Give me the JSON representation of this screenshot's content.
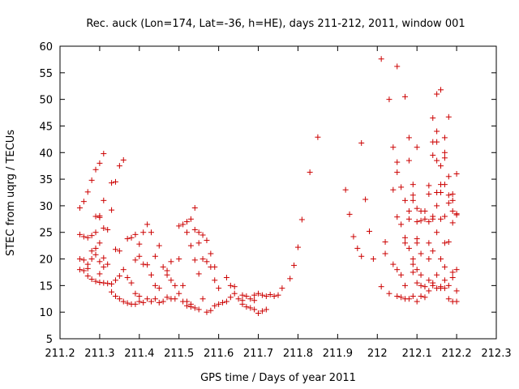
{
  "chart_data": {
    "type": "scatter",
    "title": "Rec. auck (Lon=174, Lat=-36, h=HE), days 211-212, 2011, window 001",
    "xlabel": "GPS time / Days of year 2011",
    "ylabel": "STEC from uqrg / TECUs",
    "xlim": [
      211.2,
      212.3
    ],
    "ylim": [
      5,
      60
    ],
    "x_ticks": [
      "211.2",
      "211.3",
      "211.4",
      "211.5",
      "211.6",
      "211.7",
      "211.8",
      "211.9",
      "212",
      "212.1",
      "212.2",
      "212.3"
    ],
    "y_ticks": [
      "5",
      "10",
      "15",
      "20",
      "25",
      "30",
      "35",
      "40",
      "45",
      "50",
      "55",
      "60"
    ],
    "grid": false,
    "legend": "none",
    "marker": "plus",
    "color": "#cc0000",
    "series": [
      {
        "points": [
          [
            211.25,
            29.6
          ],
          [
            211.26,
            30.8
          ],
          [
            211.27,
            32.6
          ],
          [
            211.28,
            34.8
          ],
          [
            211.29,
            36.8
          ],
          [
            211.3,
            38.0
          ],
          [
            211.31,
            39.8
          ],
          [
            211.33,
            34.3
          ],
          [
            211.34,
            34.5
          ],
          [
            211.35,
            37.5
          ],
          [
            211.36,
            38.6
          ],
          [
            211.25,
            24.6
          ],
          [
            211.26,
            24.2
          ],
          [
            211.27,
            24.0
          ],
          [
            211.28,
            24.4
          ],
          [
            211.29,
            25.0
          ],
          [
            211.3,
            27.8
          ],
          [
            211.31,
            25.8
          ],
          [
            211.32,
            25.5
          ],
          [
            211.33,
            29.2
          ],
          [
            211.29,
            28.0
          ],
          [
            211.3,
            28.1
          ],
          [
            211.31,
            31.0
          ],
          [
            211.25,
            20.0
          ],
          [
            211.26,
            19.8
          ],
          [
            211.27,
            19.0
          ],
          [
            211.28,
            20.0
          ],
          [
            211.29,
            20.8
          ],
          [
            211.3,
            23.0
          ],
          [
            211.31,
            20.2
          ],
          [
            211.25,
            18.0
          ],
          [
            211.26,
            17.8
          ],
          [
            211.27,
            18.2
          ],
          [
            211.28,
            21.5
          ],
          [
            211.29,
            22.0
          ],
          [
            211.3,
            19.5
          ],
          [
            211.27,
            16.8
          ],
          [
            211.28,
            16.2
          ],
          [
            211.29,
            15.8
          ],
          [
            211.3,
            15.6
          ],
          [
            211.31,
            15.5
          ],
          [
            211.32,
            15.4
          ],
          [
            211.33,
            15.3
          ],
          [
            211.34,
            16.0
          ],
          [
            211.35,
            16.8
          ],
          [
            211.3,
            17.2
          ],
          [
            211.31,
            18.5
          ],
          [
            211.32,
            19.0
          ],
          [
            211.33,
            13.8
          ],
          [
            211.34,
            13.0
          ],
          [
            211.35,
            12.5
          ],
          [
            211.36,
            12.0
          ],
          [
            211.37,
            11.7
          ],
          [
            211.38,
            11.5
          ],
          [
            211.39,
            11.5
          ],
          [
            211.34,
            21.8
          ],
          [
            211.35,
            21.5
          ],
          [
            211.36,
            18.0
          ],
          [
            211.37,
            16.5
          ],
          [
            211.38,
            15.5
          ],
          [
            211.39,
            13.5
          ],
          [
            211.4,
            13.0
          ],
          [
            211.37,
            23.8
          ],
          [
            211.38,
            24.0
          ],
          [
            211.39,
            24.6
          ],
          [
            211.4,
            22.8
          ],
          [
            211.41,
            25.0
          ],
          [
            211.42,
            26.5
          ],
          [
            211.43,
            25.0
          ],
          [
            211.44,
            20.5
          ],
          [
            211.39,
            19.8
          ],
          [
            211.4,
            20.5
          ],
          [
            211.41,
            19.0
          ],
          [
            211.42,
            18.9
          ],
          [
            211.43,
            17.0
          ],
          [
            211.44,
            15.0
          ],
          [
            211.45,
            14.5
          ],
          [
            211.4,
            12.0
          ],
          [
            211.41,
            11.8
          ],
          [
            211.42,
            12.5
          ],
          [
            211.43,
            12.0
          ],
          [
            211.44,
            12.5
          ],
          [
            211.45,
            11.8
          ],
          [
            211.46,
            12.0
          ],
          [
            211.47,
            12.8
          ],
          [
            211.48,
            12.5
          ],
          [
            211.49,
            12.5
          ],
          [
            211.45,
            22.5
          ],
          [
            211.46,
            18.5
          ],
          [
            211.47,
            17.0
          ],
          [
            211.48,
            16.0
          ],
          [
            211.49,
            15.0
          ],
          [
            211.5,
            13.5
          ],
          [
            211.51,
            12.0
          ],
          [
            211.47,
            17.8
          ],
          [
            211.48,
            19.5
          ],
          [
            211.5,
            20.0
          ],
          [
            211.51,
            15.0
          ],
          [
            211.52,
            11.2
          ],
          [
            211.53,
            11.0
          ],
          [
            211.54,
            10.8
          ],
          [
            211.55,
            10.5
          ],
          [
            211.5,
            26.2
          ],
          [
            211.51,
            26.5
          ],
          [
            211.52,
            27.0
          ],
          [
            211.53,
            27.5
          ],
          [
            211.54,
            25.5
          ],
          [
            211.55,
            25.0
          ],
          [
            211.56,
            24.5
          ],
          [
            211.57,
            23.5
          ],
          [
            211.58,
            21.0
          ],
          [
            211.59,
            18.5
          ],
          [
            211.54,
            29.6
          ],
          [
            211.55,
            23.0
          ],
          [
            211.56,
            20.0
          ],
          [
            211.57,
            19.5
          ],
          [
            211.58,
            18.5
          ],
          [
            211.59,
            16.0
          ],
          [
            211.6,
            14.5
          ],
          [
            211.52,
            25.0
          ],
          [
            211.53,
            22.5
          ],
          [
            211.54,
            19.8
          ],
          [
            211.55,
            17.2
          ],
          [
            211.56,
            12.5
          ],
          [
            211.57,
            10.0
          ],
          [
            211.58,
            10.3
          ],
          [
            211.59,
            11.2
          ],
          [
            211.52,
            12.0
          ],
          [
            211.53,
            11.5
          ],
          [
            211.6,
            11.5
          ],
          [
            211.61,
            11.8
          ],
          [
            211.62,
            12.0
          ],
          [
            211.63,
            12.8
          ],
          [
            211.64,
            13.5
          ],
          [
            211.65,
            12.5
          ],
          [
            211.66,
            12.2
          ],
          [
            211.62,
            16.5
          ],
          [
            211.63,
            15.0
          ],
          [
            211.64,
            14.8
          ],
          [
            211.66,
            13.2
          ],
          [
            211.67,
            13.0
          ],
          [
            211.68,
            12.5
          ],
          [
            211.69,
            12.2
          ],
          [
            211.66,
            11.5
          ],
          [
            211.67,
            11.0
          ],
          [
            211.68,
            10.8
          ],
          [
            211.69,
            10.5
          ],
          [
            211.7,
            9.8
          ],
          [
            211.71,
            10.2
          ],
          [
            211.72,
            10.5
          ],
          [
            211.69,
            13.2
          ],
          [
            211.7,
            13.5
          ],
          [
            211.71,
            13.2
          ],
          [
            211.72,
            13.0
          ],
          [
            211.73,
            13.3
          ],
          [
            211.74,
            13.0
          ],
          [
            211.75,
            13.2
          ],
          [
            211.76,
            14.5
          ],
          [
            211.78,
            16.3
          ],
          [
            211.79,
            18.8
          ],
          [
            211.8,
            22.2
          ],
          [
            211.81,
            27.4
          ],
          [
            211.83,
            36.3
          ],
          [
            211.85,
            42.9
          ],
          [
            211.92,
            33.0
          ],
          [
            211.93,
            28.4
          ],
          [
            211.94,
            24.2
          ],
          [
            211.95,
            22.0
          ],
          [
            211.96,
            20.5
          ],
          [
            211.97,
            31.2
          ],
          [
            211.96,
            41.8
          ],
          [
            211.98,
            25.2
          ],
          [
            211.99,
            20.0
          ],
          [
            212.01,
            57.6
          ],
          [
            212.02,
            23.2
          ],
          [
            212.01,
            14.8
          ],
          [
            212.02,
            21.0
          ],
          [
            212.03,
            50.0
          ],
          [
            212.03,
            13.5
          ],
          [
            212.04,
            19.0
          ],
          [
            212.04,
            33.0
          ],
          [
            212.04,
            41.0
          ],
          [
            212.05,
            56.2
          ],
          [
            212.05,
            38.2
          ],
          [
            212.05,
            36.3
          ],
          [
            212.05,
            27.9
          ],
          [
            212.05,
            18.0
          ],
          [
            212.05,
            13.0
          ],
          [
            212.06,
            33.5
          ],
          [
            212.06,
            26.5
          ],
          [
            212.06,
            17.0
          ],
          [
            212.06,
            12.8
          ],
          [
            212.07,
            50.5
          ],
          [
            212.07,
            31.0
          ],
          [
            212.07,
            24.0
          ],
          [
            212.07,
            23.0
          ],
          [
            212.07,
            15.0
          ],
          [
            212.07,
            12.5
          ],
          [
            212.08,
            42.8
          ],
          [
            212.08,
            38.5
          ],
          [
            212.08,
            29.0
          ],
          [
            212.08,
            27.5
          ],
          [
            212.08,
            22.0
          ],
          [
            212.08,
            12.5
          ],
          [
            212.09,
            34.0
          ],
          [
            212.09,
            32.0
          ],
          [
            212.09,
            31.0
          ],
          [
            212.09,
            20.0
          ],
          [
            212.09,
            19.0
          ],
          [
            212.09,
            17.5
          ],
          [
            212.09,
            13.0
          ],
          [
            212.1,
            41.0
          ],
          [
            212.1,
            29.5
          ],
          [
            212.1,
            27.0
          ],
          [
            212.1,
            23.8
          ],
          [
            212.1,
            23.0
          ],
          [
            212.1,
            18.0
          ],
          [
            212.1,
            15.5
          ],
          [
            212.1,
            12.0
          ],
          [
            212.11,
            29.0
          ],
          [
            212.11,
            27.2
          ],
          [
            212.11,
            21.0
          ],
          [
            212.11,
            17.0
          ],
          [
            212.11,
            15.0
          ],
          [
            212.11,
            13.0
          ],
          [
            212.12,
            29.0
          ],
          [
            212.12,
            27.5
          ],
          [
            212.12,
            14.8
          ],
          [
            212.12,
            12.8
          ],
          [
            212.13,
            33.8
          ],
          [
            212.13,
            32.2
          ],
          [
            212.13,
            27.0
          ],
          [
            212.13,
            23.0
          ],
          [
            212.13,
            20.0
          ],
          [
            212.13,
            16.0
          ],
          [
            212.13,
            14.0
          ],
          [
            212.14,
            46.5
          ],
          [
            212.14,
            42.0
          ],
          [
            212.14,
            39.5
          ],
          [
            212.14,
            28.0
          ],
          [
            212.14,
            27.5
          ],
          [
            212.14,
            21.5
          ],
          [
            212.14,
            15.5
          ],
          [
            212.14,
            15.0
          ],
          [
            212.15,
            51.0
          ],
          [
            212.15,
            44.0
          ],
          [
            212.15,
            42.0
          ],
          [
            212.15,
            38.5
          ],
          [
            212.15,
            32.5
          ],
          [
            212.15,
            30.0
          ],
          [
            212.15,
            25.0
          ],
          [
            212.15,
            17.0
          ],
          [
            212.15,
            14.5
          ],
          [
            212.16,
            51.8
          ],
          [
            212.16,
            37.5
          ],
          [
            212.16,
            34.0
          ],
          [
            212.16,
            32.5
          ],
          [
            212.16,
            27.5
          ],
          [
            212.16,
            20.0
          ],
          [
            212.16,
            14.8
          ],
          [
            212.16,
            14.5
          ],
          [
            212.17,
            42.8
          ],
          [
            212.17,
            40.0
          ],
          [
            212.17,
            39.0
          ],
          [
            212.17,
            34.0
          ],
          [
            212.17,
            28.0
          ],
          [
            212.17,
            23.0
          ],
          [
            212.17,
            18.5
          ],
          [
            212.17,
            16.0
          ],
          [
            212.17,
            14.5
          ],
          [
            212.18,
            46.7
          ],
          [
            212.18,
            35.5
          ],
          [
            212.18,
            32.0
          ],
          [
            212.18,
            30.5
          ],
          [
            212.18,
            23.2
          ],
          [
            212.18,
            15.0
          ],
          [
            212.18,
            12.5
          ],
          [
            212.19,
            32.2
          ],
          [
            212.19,
            31.0
          ],
          [
            212.19,
            29.0
          ],
          [
            212.19,
            26.8
          ],
          [
            212.19,
            17.5
          ],
          [
            212.19,
            16.5
          ],
          [
            212.19,
            12.0
          ],
          [
            212.2,
            36.0
          ],
          [
            212.2,
            28.5
          ],
          [
            212.2,
            28.3
          ],
          [
            212.2,
            18.0
          ],
          [
            212.2,
            14.0
          ],
          [
            212.2,
            12.0
          ]
        ]
      }
    ]
  }
}
